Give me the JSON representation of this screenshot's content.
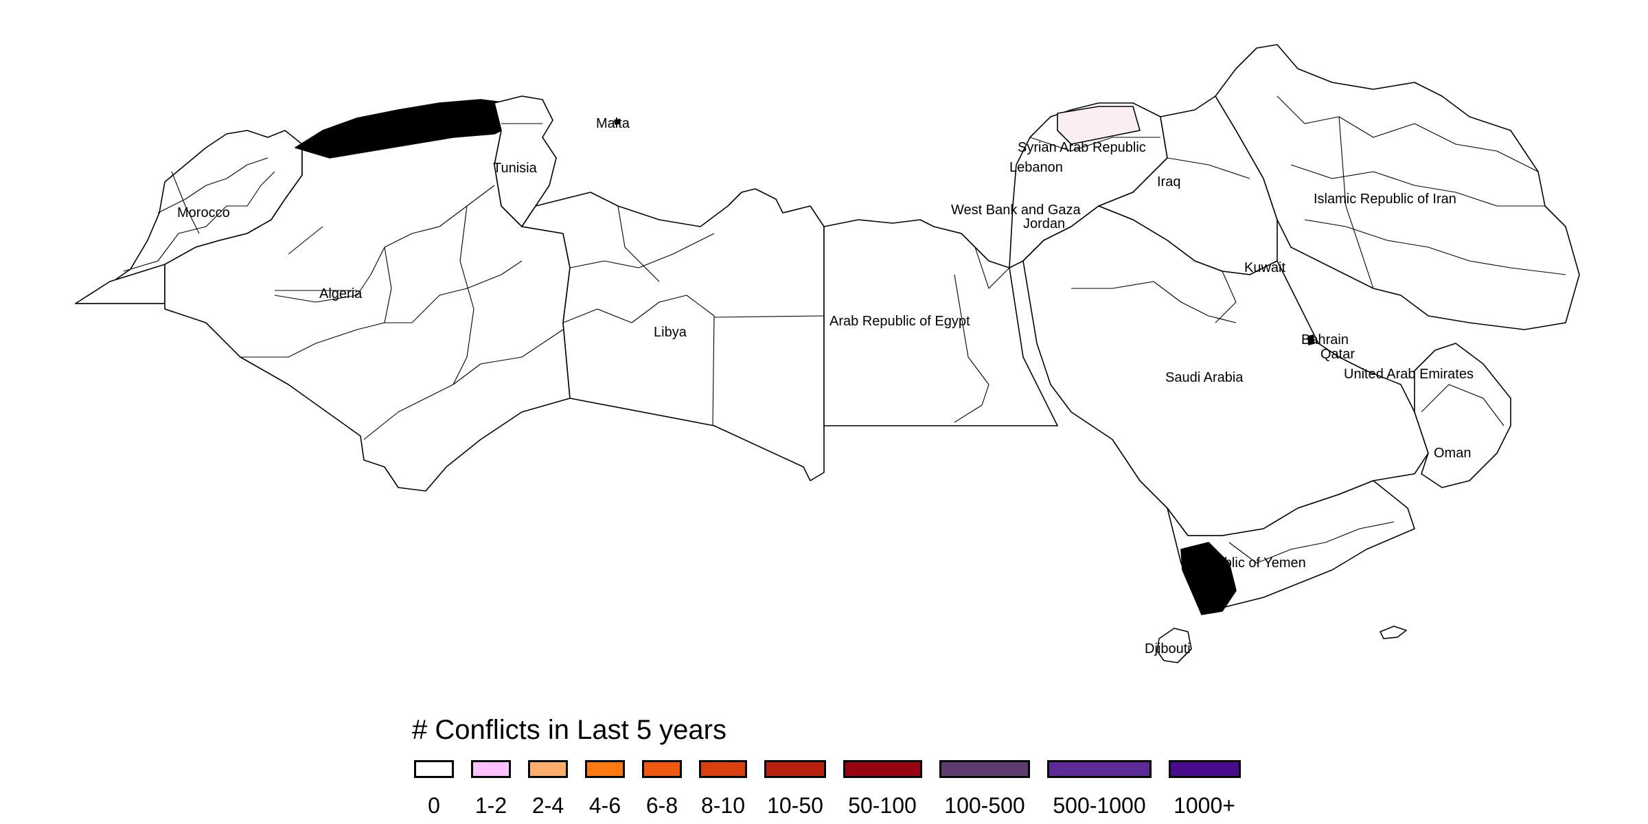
{
  "legend": {
    "title": "# Conflicts in Last 5 years",
    "items": [
      {
        "label": "0",
        "color": "#ffffff"
      },
      {
        "label": "1-2",
        "color": "#ffc0ff"
      },
      {
        "label": "2-4",
        "color": "#fdae6b"
      },
      {
        "label": "4-6",
        "color": "#fd7a12"
      },
      {
        "label": "6-8",
        "color": "#f05a10"
      },
      {
        "label": "8-10",
        "color": "#d84010"
      },
      {
        "label": "10-50",
        "color": "#b82010"
      },
      {
        "label": "50-100",
        "color": "#960410"
      },
      {
        "label": "100-500",
        "color": "#5e3c6e"
      },
      {
        "label": "500-1000",
        "color": "#5e2a9a"
      },
      {
        "label": "1000+",
        "color": "#4a0c8c"
      }
    ]
  },
  "countries": [
    "Morocco",
    "Algeria",
    "Tunisia",
    "Malta",
    "Libya",
    "Arab Republic of Egypt",
    "Syrian Arab Republic",
    "Lebanon",
    "West Bank and Gaza",
    "Jordan",
    "Iraq",
    "Islamic Republic of Iran",
    "Kuwait",
    "Bahrain",
    "Qatar",
    "United Arab Emirates",
    "Saudi Arabia",
    "Oman",
    "Republic of Yemen",
    "Djibouti"
  ]
}
